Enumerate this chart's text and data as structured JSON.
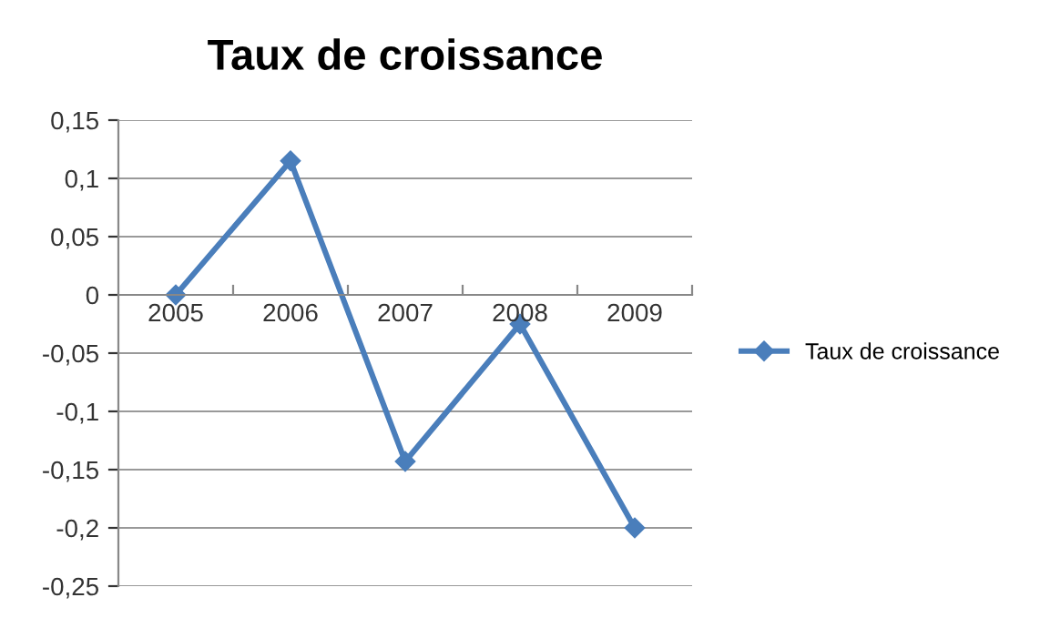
{
  "chart_data": {
    "type": "line",
    "title": "Taux de croissance",
    "categories": [
      "2005",
      "2006",
      "2007",
      "2008",
      "2009"
    ],
    "series": [
      {
        "name": "Taux de croissance",
        "color": "#4a7ebb",
        "values": [
          0,
          0.115,
          -0.143,
          -0.025,
          -0.2
        ]
      }
    ],
    "ylim": [
      -0.25,
      0.15
    ],
    "yticks": [
      {
        "value": -0.25,
        "label": "-0,25"
      },
      {
        "value": -0.2,
        "label": "-0,2"
      },
      {
        "value": -0.15,
        "label": "-0,15"
      },
      {
        "value": -0.1,
        "label": "-0,1"
      },
      {
        "value": -0.05,
        "label": "-0,05"
      },
      0,
      {
        "value": 0.05,
        "label": "0,05"
      },
      {
        "value": 0.1,
        "label": "0,1"
      },
      {
        "value": 0.15,
        "label": "0,15"
      }
    ],
    "grid": "y",
    "legend": "right",
    "marker": "diamond",
    "line_style": "solid"
  }
}
